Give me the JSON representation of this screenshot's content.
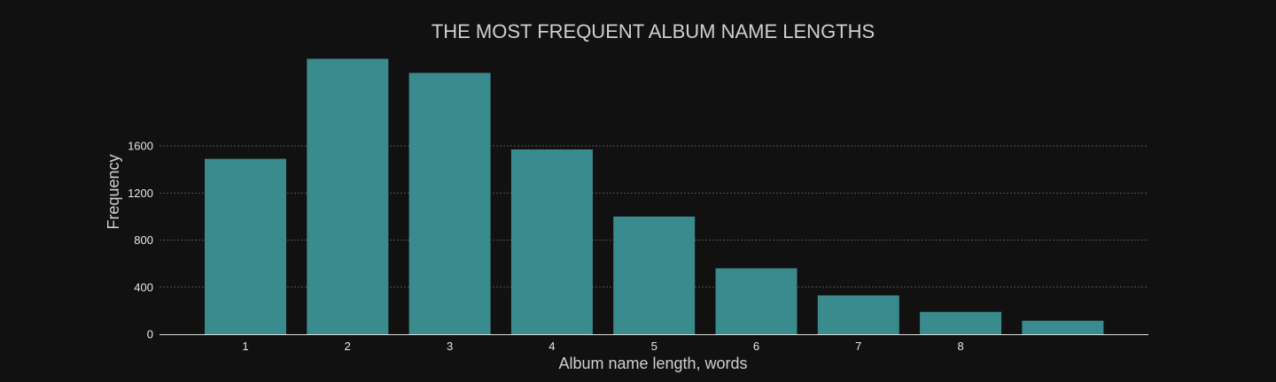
{
  "chart_data": {
    "type": "bar",
    "title": "THE MOST FREQUENT ALBUM NAME LENGTHS",
    "xlabel": "Album name length, words",
    "ylabel": "Frequency",
    "categories": [
      "1",
      "2",
      "3",
      "4",
      "5",
      "6",
      "7",
      "8",
      ""
    ],
    "values": [
      1490,
      2340,
      2220,
      1570,
      1000,
      560,
      330,
      190,
      115
    ],
    "yticks": [
      0,
      400,
      800,
      1200,
      1600
    ],
    "ylim": [
      0,
      2350
    ],
    "grid": true,
    "bar_color": "#3a8b8e",
    "background_color": "#111111"
  }
}
